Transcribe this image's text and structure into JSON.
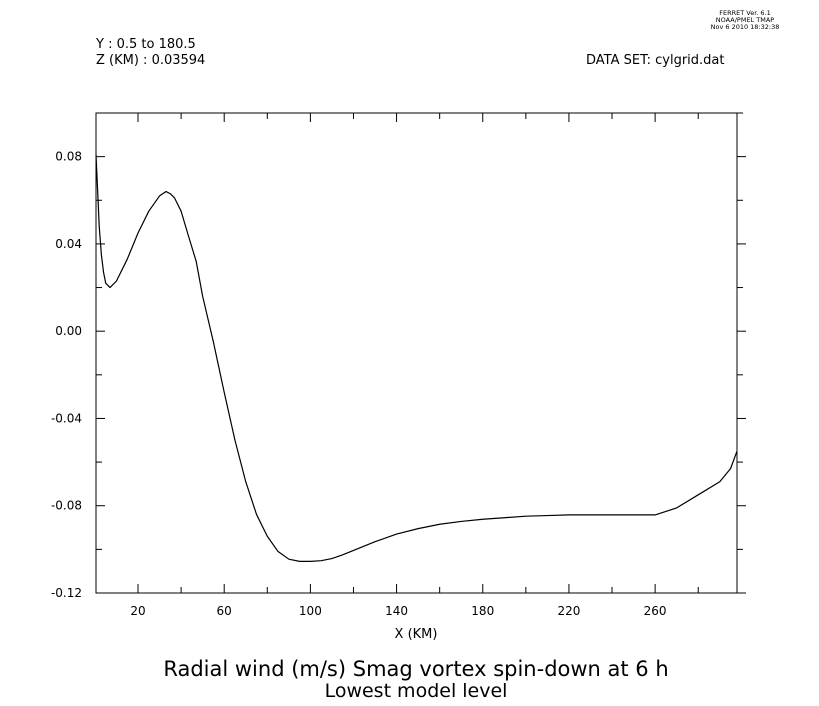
{
  "header": {
    "ferret_line1": "FERRET Ver. 6.1",
    "ferret_line2": "NOAA/PMEL TMAP",
    "ferret_line3": "Nov  6 2010 18:32:38",
    "y_range": "Y : 0.5 to 180.5",
    "z_level": "Z (KM) : 0.03594",
    "dataset": "DATA SET: cylgrid.dat"
  },
  "chart_data": {
    "type": "line",
    "title": "Radial wind (m/s) Smag vortex spin-down at 6 h",
    "subtitle": "Lowest model level",
    "xlabel": "X (KM)",
    "ylabel": "",
    "xlim": [
      0.5,
      298
    ],
    "ylim": [
      -0.12,
      0.1
    ],
    "x_ticks": [
      20,
      60,
      100,
      140,
      180,
      220,
      260
    ],
    "x_tick_labels": [
      "20",
      "60",
      "100",
      "140",
      "180",
      "220",
      "260"
    ],
    "y_ticks": [
      -0.12,
      -0.08,
      -0.04,
      0.0,
      0.04,
      0.08
    ],
    "y_tick_labels": [
      "-0.12",
      "-0.08",
      "-0.04",
      "0.00",
      "0.04",
      "0.08"
    ],
    "grid": false,
    "series": [
      {
        "x": [
          0.5,
          1,
          2,
          3,
          4,
          5,
          7,
          10,
          15,
          20,
          25,
          30,
          33,
          35,
          37,
          40,
          43,
          47,
          50,
          55,
          60,
          65,
          70,
          75,
          80,
          85,
          90,
          95,
          100,
          105,
          110,
          115,
          120,
          125,
          130,
          140,
          150,
          160,
          170,
          180,
          190,
          200,
          210,
          220,
          230,
          240,
          250,
          255,
          260,
          270,
          280,
          290,
          295,
          298
        ],
        "y": [
          0.081,
          0.07,
          0.048,
          0.035,
          0.027,
          0.022,
          0.02,
          0.023,
          0.033,
          0.045,
          0.055,
          0.062,
          0.064,
          0.063,
          0.061,
          0.055,
          0.045,
          0.032,
          0.016,
          -0.005,
          -0.028,
          -0.05,
          -0.069,
          -0.084,
          -0.094,
          -0.101,
          -0.1045,
          -0.1055,
          -0.1055,
          -0.1052,
          -0.1042,
          -0.1025,
          -0.1005,
          -0.0985,
          -0.0965,
          -0.093,
          -0.0905,
          -0.0885,
          -0.0872,
          -0.0862,
          -0.0855,
          -0.0848,
          -0.0845,
          -0.0842,
          -0.0842,
          -0.0842,
          -0.0842,
          -0.0842,
          -0.0842,
          -0.081,
          -0.075,
          -0.069,
          -0.063,
          -0.055
        ]
      }
    ]
  }
}
